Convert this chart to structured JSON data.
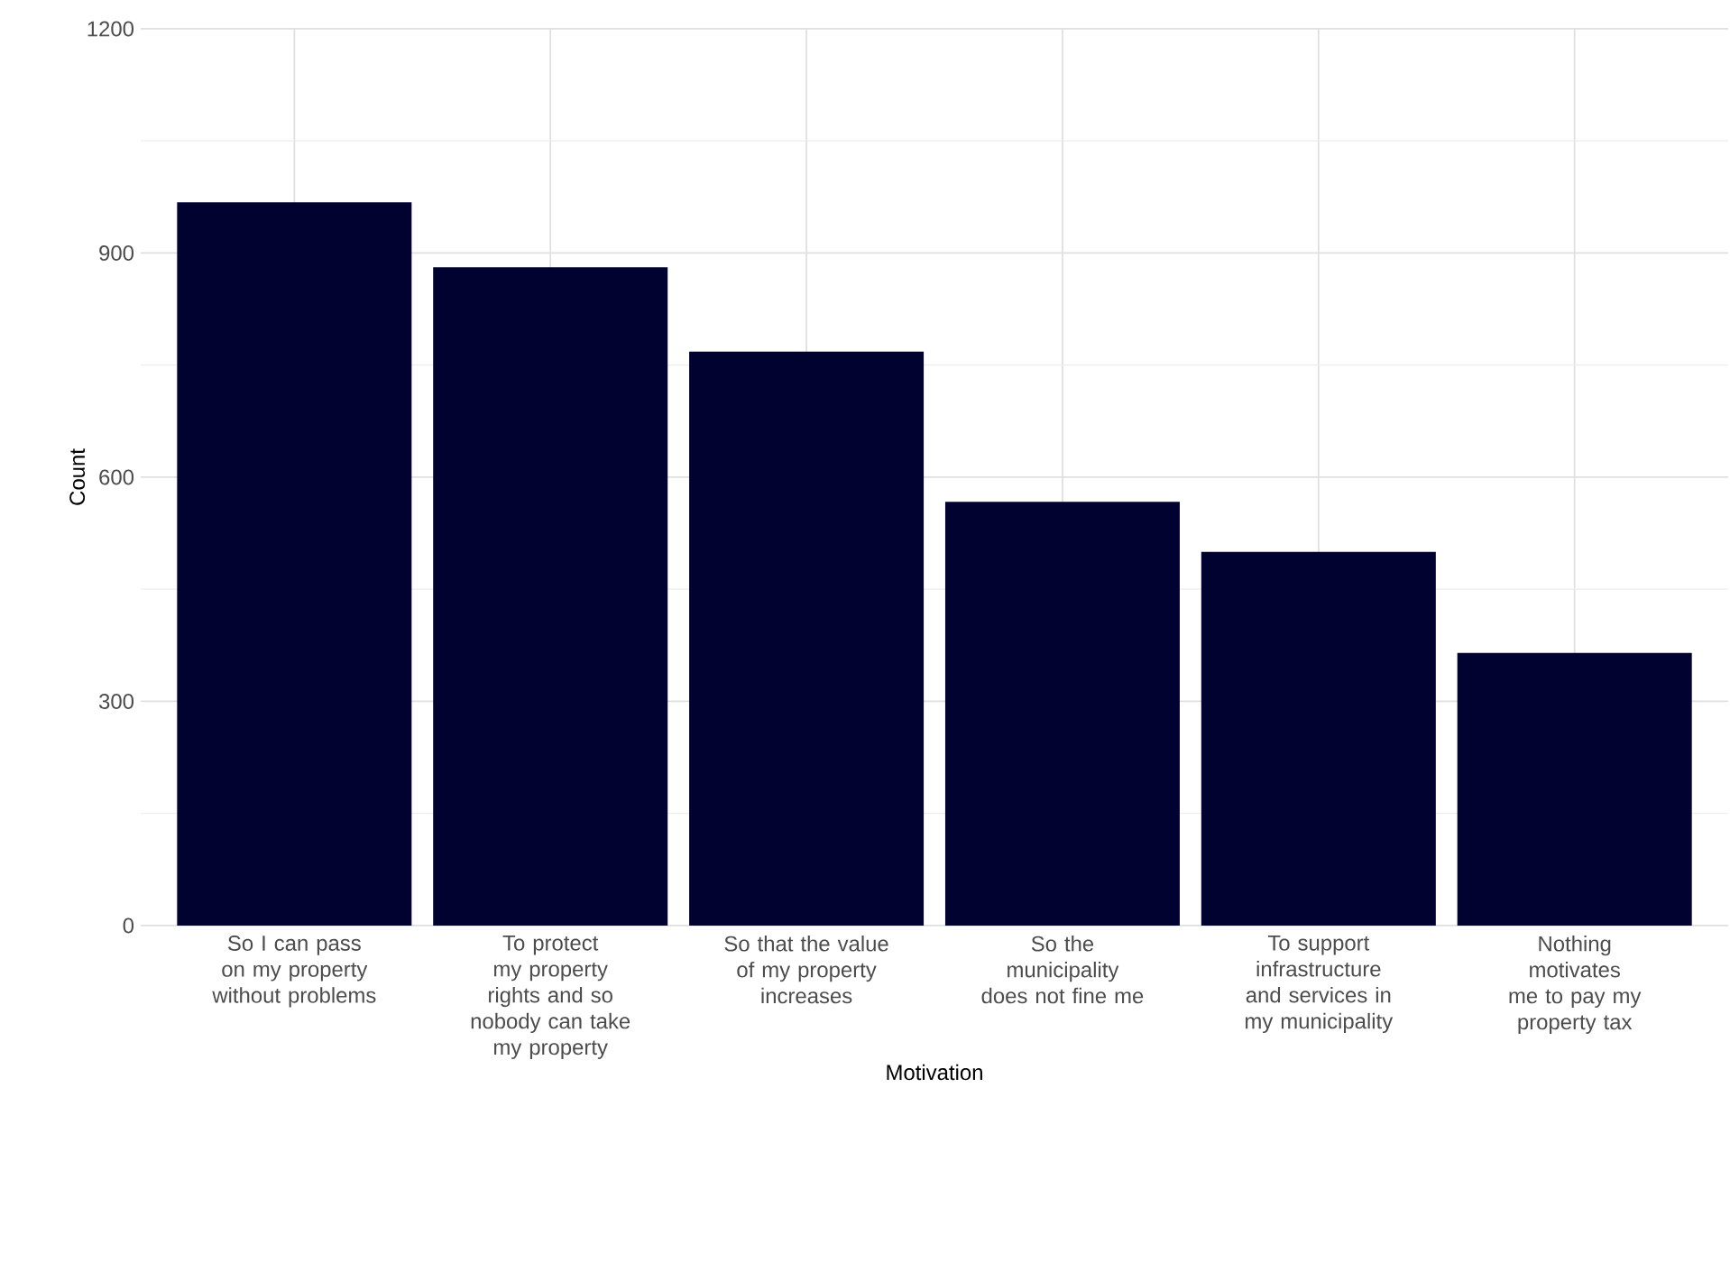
{
  "chart_data": {
    "type": "bar",
    "xlabel": "Motivation",
    "ylabel": "Count",
    "categories": [
      "So I can pass on my property without problems",
      "To protect my property rights and so nobody can take my property",
      "So that the value of my property increases",
      "So the municipality does not fine me",
      "To support infrastructure and services in my municipality",
      "Nothing motivates me to pay my property tax"
    ],
    "values": [
      968,
      881,
      768,
      567,
      500,
      365
    ],
    "color": "#020230",
    "ylim": [
      0,
      1200
    ],
    "yticks": [
      0,
      300,
      600,
      900,
      1200
    ],
    "grid": true
  }
}
